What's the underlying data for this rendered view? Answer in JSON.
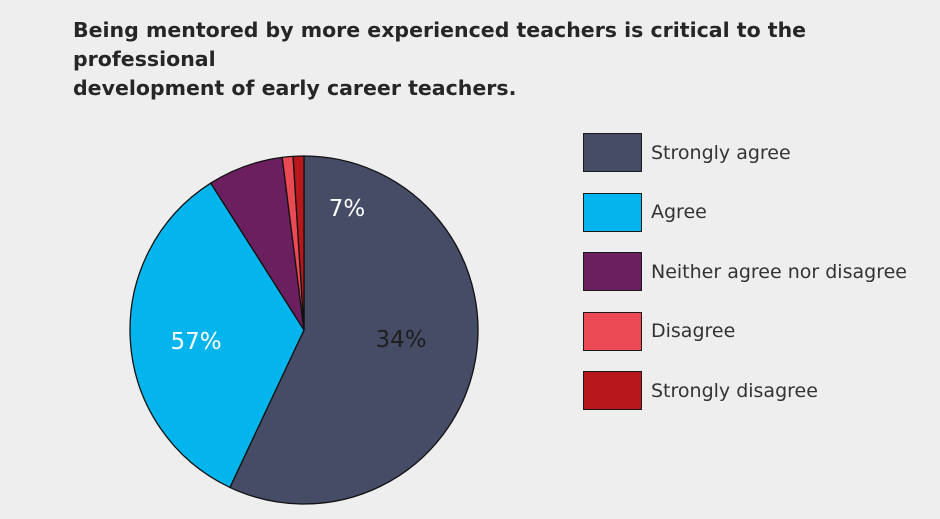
{
  "chart_data": {
    "type": "pie",
    "title_lines": [
      "Being mentored by more experienced teachers is critical to the professional",
      "development of early career teachers."
    ],
    "slices": [
      {
        "name": "Strongly agree",
        "value": 57,
        "label": "57%",
        "color": "#464b66",
        "label_color": "#ffffff"
      },
      {
        "name": "Agree",
        "value": 34,
        "label": "34%",
        "color": "#04b4ec",
        "label_color": "#1e1e1e"
      },
      {
        "name": "Neither agree nor disagree",
        "value": 7,
        "label": "7%",
        "color": "#6b1f5e",
        "label_color": "#ffffff"
      },
      {
        "name": "Disagree",
        "value": 1,
        "label": "",
        "color": "#eb4a55",
        "label_color": "#ffffff"
      },
      {
        "name": "Strongly disagree",
        "value": 1,
        "label": "",
        "color": "#b8181c",
        "label_color": "#ffffff"
      }
    ],
    "start_angle_deg": 0,
    "direction": "clockwise",
    "legend_position": "right"
  }
}
